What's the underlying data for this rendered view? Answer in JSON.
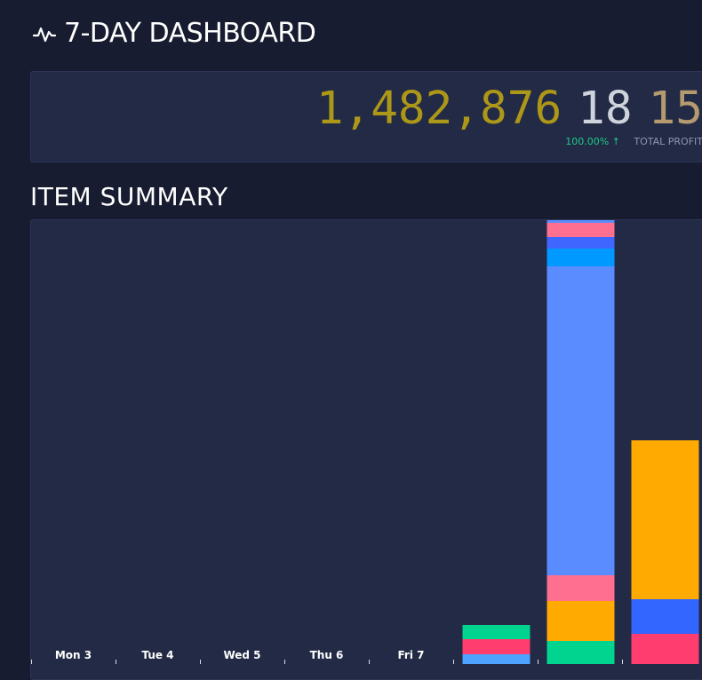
{
  "header": {
    "title": "7-DAY DASHBOARD",
    "icon": "pulse-icon"
  },
  "stats": {
    "total_main": "1,482,876",
    "total_mid": "18",
    "total_tail": "15",
    "change_pct": "100.00% ↑",
    "label": "TOTAL PROFIT"
  },
  "summary": {
    "title": "ITEM SUMMARY"
  },
  "chart_data": {
    "type": "bar",
    "stacked": true,
    "categories": [
      "Mon 3",
      "Tue 4",
      "Wed 5",
      "Thu 6",
      "Fri 7",
      "",
      "",
      ""
    ],
    "segments_by_category": [
      [],
      [],
      [],
      [],
      [],
      [
        {
          "value": 11,
          "color": "#4da3ff"
        },
        {
          "value": 17,
          "color": "#ff3d6e"
        },
        {
          "value": 16,
          "color": "#00d48f"
        }
      ],
      [
        {
          "value": 26,
          "color": "#00d48f"
        },
        {
          "value": 45,
          "color": "#ffaa00"
        },
        {
          "value": 29,
          "color": "#ff6f8f"
        },
        {
          "value": 348,
          "color": "#5b8cff"
        },
        {
          "value": 20,
          "color": "#0099ff"
        },
        {
          "value": 13,
          "color": "#3f66ff"
        },
        {
          "value": 16,
          "color": "#ff6f8f"
        },
        {
          "value": 4,
          "color": "#5b8cff"
        }
      ],
      [
        {
          "value": 34,
          "color": "#ff3d6e"
        },
        {
          "value": 39,
          "color": "#3366ff"
        },
        {
          "value": 179,
          "color": "#ffaa00"
        }
      ]
    ],
    "ylim": [
      0,
      500
    ],
    "grid": false,
    "colors": {
      "tick": "#d8dce6",
      "label": "#ffffff"
    }
  }
}
